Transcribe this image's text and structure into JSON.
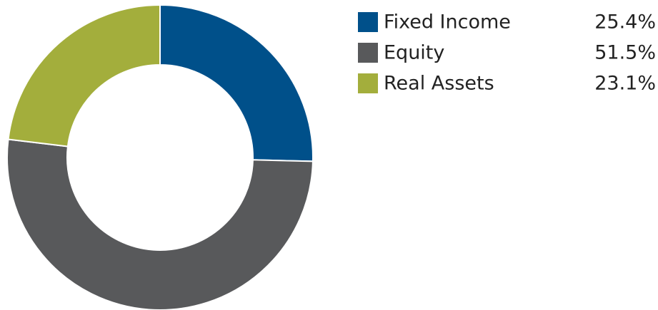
{
  "chart_data": {
    "type": "donut",
    "categories": [
      "Fixed Income",
      "Equity",
      "Real Assets"
    ],
    "values": [
      25.4,
      51.5,
      23.1
    ],
    "value_labels": [
      "25.4%",
      "51.5%",
      "23.1%"
    ],
    "colors": [
      "#00508a",
      "#58595b",
      "#a3ae3c"
    ],
    "legend": "right"
  }
}
